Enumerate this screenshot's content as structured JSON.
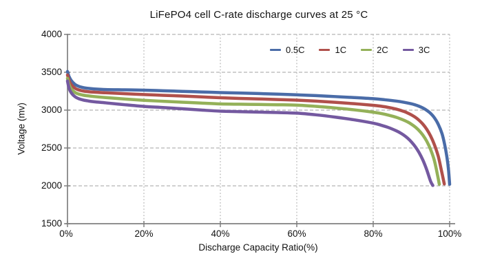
{
  "chart_data": {
    "type": "line",
    "title": "LiFePO4 cell C-rate discharge curves at 25 °C",
    "xlabel": "Discharge Capacity Ratio(%)",
    "ylabel": "Voltage (mv)",
    "xlim": [
      0,
      100
    ],
    "ylim": [
      1500,
      4000
    ],
    "x_ticks": [
      {
        "value": 0,
        "label": "0%"
      },
      {
        "value": 20,
        "label": "20%"
      },
      {
        "value": 40,
        "label": "40%"
      },
      {
        "value": 60,
        "label": "60%"
      },
      {
        "value": 80,
        "label": "80%"
      },
      {
        "value": 100,
        "label": "100%"
      }
    ],
    "y_ticks": [
      {
        "value": 4000,
        "label": "4000"
      },
      {
        "value": 3500,
        "label": "3500"
      },
      {
        "value": 3000,
        "label": "3000"
      },
      {
        "value": 2500,
        "label": "2500"
      },
      {
        "value": 2000,
        "label": "2000"
      },
      {
        "value": 1500,
        "label": "1500"
      }
    ],
    "grid": {
      "horizontal_style": "dashed",
      "vertical_style": "dotted",
      "on": true
    },
    "legend_position": "top-right-inside",
    "colors": {
      "axis": "#7f7f7f",
      "grid": "#b3b3b3",
      "text": "#111111"
    },
    "series": [
      {
        "name": "0.5C",
        "color": "#4a6ca8",
        "points": [
          [
            0,
            3510
          ],
          [
            0.4,
            3445
          ],
          [
            1,
            3390
          ],
          [
            2,
            3338
          ],
          [
            3,
            3313
          ],
          [
            4,
            3299
          ],
          [
            5,
            3290
          ],
          [
            7,
            3280
          ],
          [
            10,
            3272
          ],
          [
            15,
            3268
          ],
          [
            20,
            3264
          ],
          [
            25,
            3256
          ],
          [
            30,
            3248
          ],
          [
            35,
            3240
          ],
          [
            40,
            3232
          ],
          [
            45,
            3226
          ],
          [
            50,
            3219
          ],
          [
            55,
            3211
          ],
          [
            60,
            3202
          ],
          [
            65,
            3192
          ],
          [
            70,
            3179
          ],
          [
            75,
            3166
          ],
          [
            80,
            3151
          ],
          [
            83,
            3137
          ],
          [
            86,
            3120
          ],
          [
            88,
            3104
          ],
          [
            90,
            3083
          ],
          [
            91,
            3069
          ],
          [
            92,
            3051
          ],
          [
            93,
            3028
          ],
          [
            94,
            2998
          ],
          [
            95,
            2958
          ],
          [
            96,
            2900
          ],
          [
            97,
            2815
          ],
          [
            98,
            2690
          ],
          [
            98.7,
            2545
          ],
          [
            99.3,
            2375
          ],
          [
            99.7,
            2215
          ],
          [
            100,
            2020
          ]
        ]
      },
      {
        "name": "1C",
        "color": "#b0504b",
        "points": [
          [
            0,
            3465
          ],
          [
            0.4,
            3395
          ],
          [
            1,
            3335
          ],
          [
            2,
            3288
          ],
          [
            3,
            3266
          ],
          [
            4,
            3254
          ],
          [
            5,
            3246
          ],
          [
            7,
            3237
          ],
          [
            10,
            3229
          ],
          [
            15,
            3217
          ],
          [
            20,
            3206
          ],
          [
            25,
            3196
          ],
          [
            30,
            3186
          ],
          [
            35,
            3175
          ],
          [
            40,
            3164
          ],
          [
            45,
            3155
          ],
          [
            50,
            3148
          ],
          [
            55,
            3140
          ],
          [
            60,
            3132
          ],
          [
            65,
            3119
          ],
          [
            70,
            3103
          ],
          [
            75,
            3085
          ],
          [
            80,
            3064
          ],
          [
            82,
            3052
          ],
          [
            84,
            3036
          ],
          [
            86,
            3014
          ],
          [
            88,
            2983
          ],
          [
            89,
            2962
          ],
          [
            90,
            2937
          ],
          [
            91,
            2906
          ],
          [
            92,
            2866
          ],
          [
            93,
            2815
          ],
          [
            94,
            2748
          ],
          [
            95,
            2660
          ],
          [
            96,
            2545
          ],
          [
            97,
            2395
          ],
          [
            97.8,
            2215
          ],
          [
            98.6,
            2025
          ]
        ]
      },
      {
        "name": "2C",
        "color": "#94b159",
        "points": [
          [
            0,
            3420
          ],
          [
            0.4,
            3340
          ],
          [
            1,
            3280
          ],
          [
            2,
            3233
          ],
          [
            3,
            3211
          ],
          [
            4,
            3199
          ],
          [
            5,
            3191
          ],
          [
            7,
            3179
          ],
          [
            10,
            3166
          ],
          [
            15,
            3147
          ],
          [
            20,
            3130
          ],
          [
            25,
            3117
          ],
          [
            30,
            3105
          ],
          [
            35,
            3093
          ],
          [
            40,
            3082
          ],
          [
            45,
            3078
          ],
          [
            50,
            3075
          ],
          [
            55,
            3071
          ],
          [
            60,
            3066
          ],
          [
            65,
            3050
          ],
          [
            70,
            3029
          ],
          [
            75,
            3004
          ],
          [
            80,
            2973
          ],
          [
            82,
            2956
          ],
          [
            84,
            2934
          ],
          [
            86,
            2906
          ],
          [
            88,
            2868
          ],
          [
            89,
            2844
          ],
          [
            90,
            2814
          ],
          [
            91,
            2777
          ],
          [
            92,
            2730
          ],
          [
            93,
            2670
          ],
          [
            94,
            2590
          ],
          [
            95,
            2482
          ],
          [
            96,
            2335
          ],
          [
            96.8,
            2150
          ],
          [
            97.3,
            2020
          ]
        ]
      },
      {
        "name": "3C",
        "color": "#7459a0",
        "points": [
          [
            0,
            3385
          ],
          [
            0.4,
            3292
          ],
          [
            1,
            3228
          ],
          [
            2,
            3176
          ],
          [
            3,
            3150
          ],
          [
            4,
            3135
          ],
          [
            5,
            3125
          ],
          [
            7,
            3110
          ],
          [
            10,
            3096
          ],
          [
            15,
            3071
          ],
          [
            20,
            3049
          ],
          [
            25,
            3034
          ],
          [
            30,
            3018
          ],
          [
            35,
            3001
          ],
          [
            40,
            2986
          ],
          [
            45,
            2980
          ],
          [
            50,
            2974
          ],
          [
            55,
            2968
          ],
          [
            60,
            2960
          ],
          [
            65,
            2938
          ],
          [
            70,
            2908
          ],
          [
            75,
            2872
          ],
          [
            80,
            2828
          ],
          [
            82,
            2802
          ],
          [
            84,
            2770
          ],
          [
            86,
            2728
          ],
          [
            87,
            2702
          ],
          [
            88,
            2670
          ],
          [
            89,
            2630
          ],
          [
            90,
            2580
          ],
          [
            91,
            2518
          ],
          [
            92,
            2440
          ],
          [
            93,
            2340
          ],
          [
            94,
            2213
          ],
          [
            95,
            2062
          ],
          [
            95.6,
            2005
          ]
        ]
      }
    ]
  }
}
